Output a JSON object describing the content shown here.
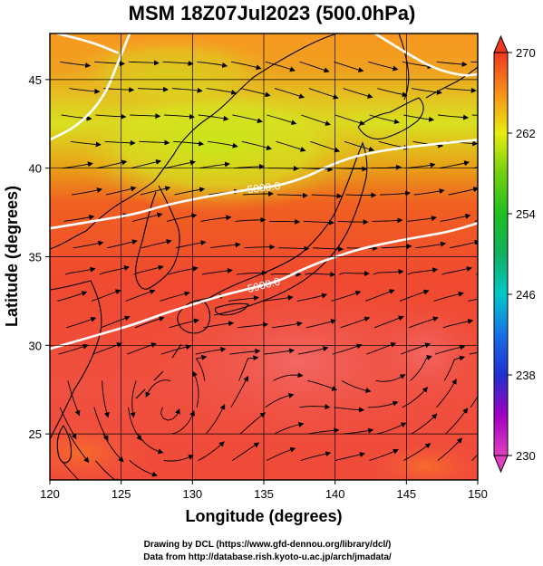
{
  "title": "MSM 18Z07Jul2023 (500.0hPa)",
  "credits": [
    "Drawing by DCL (https://www.gfd-dennou.org/library/dcl/)",
    "Data from http://database.rish.kyoto-u.ac.jp/arch/jmadata/"
  ],
  "chart_data": {
    "type": "heatmap",
    "xlabel": "Longitude (degrees)",
    "ylabel": "Latitude  (degrees)",
    "xlim": [
      120,
      150
    ],
    "ylim": [
      22.4,
      47.6
    ],
    "xticks": [
      120,
      125,
      130,
      135,
      140,
      145,
      150
    ],
    "yticks": [
      25,
      30,
      35,
      40,
      45
    ],
    "grid": true,
    "colorbar": {
      "min": 230,
      "max": 270,
      "ticks": [
        230,
        238,
        246,
        254,
        262,
        270
      ],
      "colors": {
        "230": "#e040c0",
        "234": "#a000c0",
        "238": "#2030d0",
        "242": "#1870e8",
        "246": "#00c8c8",
        "250": "#10b060",
        "254": "#20c020",
        "258": "#70d010",
        "262": "#e8ec10",
        "266": "#f89018",
        "270": "#f03820"
      }
    },
    "contours": [
      {
        "label": "5800.0",
        "points": [
          [
            120,
            36.6
          ],
          [
            123,
            37.0
          ],
          [
            126,
            37.4
          ],
          [
            128,
            37.9
          ],
          [
            131,
            38.4
          ],
          [
            134,
            38.8
          ],
          [
            136,
            39.0
          ],
          [
            138,
            39.5
          ],
          [
            140,
            40.3
          ],
          [
            142,
            40.8
          ],
          [
            145,
            41.2
          ],
          [
            150,
            41.6
          ]
        ]
      },
      {
        "label": "5900.0",
        "points": [
          [
            120,
            29.8
          ],
          [
            123,
            30.5
          ],
          [
            126,
            31.2
          ],
          [
            128,
            31.8
          ],
          [
            130,
            32.3
          ],
          [
            132,
            32.8
          ],
          [
            134,
            33.2
          ],
          [
            136,
            33.6
          ],
          [
            138,
            34.4
          ],
          [
            140,
            35.0
          ],
          [
            142,
            35.5
          ],
          [
            145,
            36.0
          ],
          [
            148,
            36.4
          ],
          [
            150,
            36.9
          ]
        ]
      },
      {
        "label": "",
        "points": [
          [
            120,
            41.6
          ],
          [
            122,
            42.4
          ],
          [
            123.8,
            44.0
          ],
          [
            124.8,
            46.0
          ],
          [
            125.6,
            47.6
          ]
        ]
      },
      {
        "label": "",
        "points": [
          [
            120.5,
            47.6
          ],
          [
            123,
            47.1
          ],
          [
            124.8,
            46.5
          ]
        ]
      },
      {
        "label": "",
        "points": [
          [
            142.8,
            47.6
          ],
          [
            145,
            46.5
          ],
          [
            147,
            45.6
          ],
          [
            149,
            45.2
          ],
          [
            150,
            45.3
          ]
        ]
      }
    ]
  }
}
